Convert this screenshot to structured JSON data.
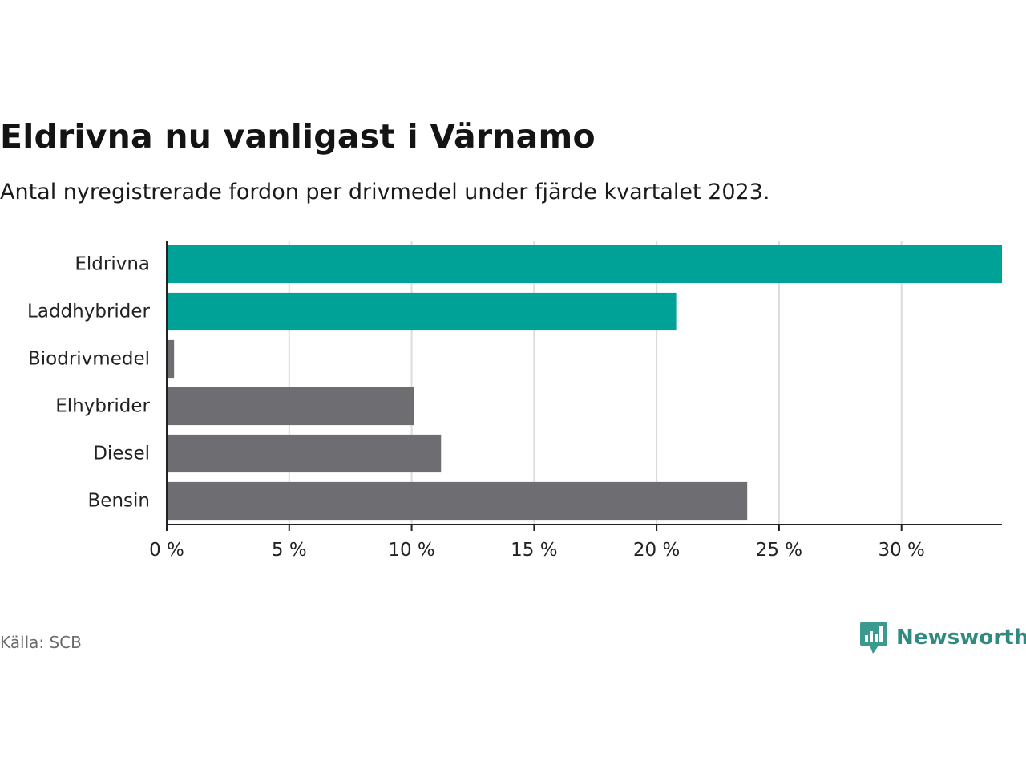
{
  "chart_data": {
    "type": "bar",
    "orientation": "horizontal",
    "title": "Eldrivna nu vanligast i Värnamo",
    "subtitle": "Antal nyregistrerade fordon per drivmedel under fjärde kvartalet 2023.",
    "categories": [
      "Eldrivna",
      "Laddhybrider",
      "Biodrivmedel",
      "Elhybrider",
      "Diesel",
      "Bensin"
    ],
    "values": [
      34.1,
      20.8,
      0.3,
      10.1,
      11.2,
      23.7
    ],
    "colors": [
      "#00a196",
      "#00a196",
      "#6d6d72",
      "#6d6d72",
      "#6d6d72",
      "#6d6d72"
    ],
    "xlim": [
      0,
      34.1
    ],
    "xticks": [
      0,
      5,
      10,
      15,
      20,
      25,
      30
    ],
    "xtick_labels": [
      "0 %",
      "5 %",
      "10 %",
      "15 %",
      "20 %",
      "25 %",
      "30 %"
    ],
    "xlabel": "",
    "ylabel": "",
    "grid": true,
    "legend": "none"
  },
  "footer": {
    "source": "Källa: SCB",
    "brand": "Newsworthy",
    "brand_icon": "newsworthy-logo-icon",
    "brand_color": "#2f8a80"
  }
}
